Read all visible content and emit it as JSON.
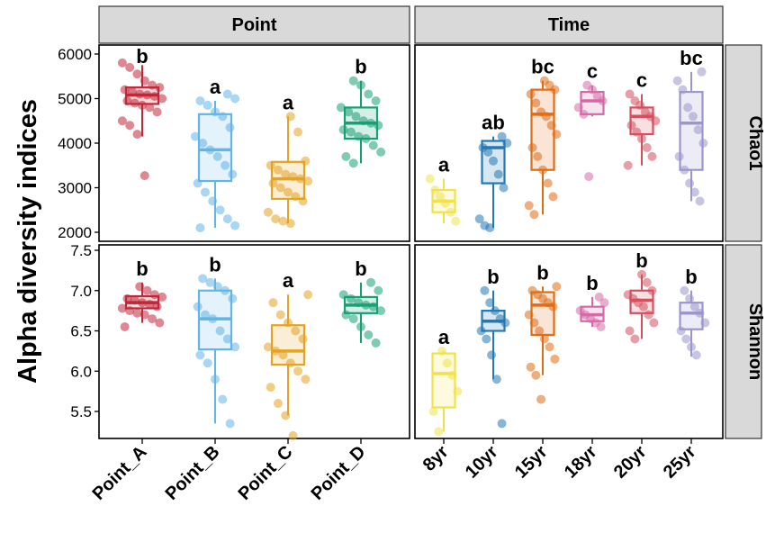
{
  "chart_data": {
    "type": "boxplot",
    "ylabel": "Alpha diversity indices",
    "facet_columns": [
      "Point",
      "Time"
    ],
    "facet_rows": [
      "Chao1",
      "Shannon"
    ],
    "groups": {
      "Point": {
        "categories": [
          "Point_A",
          "Point_B",
          "Point_C",
          "Point_D"
        ],
        "colors": [
          "#c0283a",
          "#63b5e8",
          "#e5a321",
          "#16a074"
        ]
      },
      "Time": {
        "categories": [
          "8yr",
          "10yr",
          "15yr",
          "18yr",
          "20yr",
          "25yr"
        ],
        "colors": [
          "#f2e24a",
          "#2478b4",
          "#e06c14",
          "#d66aa8",
          "#d4505f",
          "#9b96cc"
        ]
      }
    },
    "rows": {
      "Chao1": {
        "ylim": [
          2000,
          6000
        ],
        "yticks": [
          2000,
          3000,
          4000,
          5000,
          6000
        ],
        "panels": {
          "Point": [
            {
              "q1": 4880,
              "median": 5080,
              "q3": 5250,
              "whisker_low": 4150,
              "whisker_high": 5750,
              "letter": "b",
              "points": [
                5800,
                5700,
                5550,
                5400,
                5300,
                5250,
                5200,
                5150,
                5100,
                5080,
                5050,
                5000,
                4950,
                4900,
                4850,
                4800,
                4700,
                4500,
                4400,
                4200,
                3270
              ]
            },
            {
              "q1": 3150,
              "median": 3850,
              "q3": 4650,
              "whisker_low": 2100,
              "whisker_high": 4950,
              "letter": "a",
              "points": [
                5100,
                5000,
                4950,
                4850,
                4700,
                4600,
                4350,
                4150,
                4000,
                3850,
                3700,
                3500,
                3300,
                3100,
                2900,
                2700,
                2500,
                2300,
                2150,
                2100
              ]
            },
            {
              "q1": 2750,
              "median": 3200,
              "q3": 3580,
              "whisker_low": 2200,
              "whisker_high": 4600,
              "letter": "a",
              "points": [
                4600,
                4250,
                3600,
                3500,
                3400,
                3300,
                3250,
                3200,
                3150,
                3100,
                3000,
                2900,
                2800,
                2700,
                2450,
                2300,
                2250,
                2200
              ]
            },
            {
              "q1": 4100,
              "median": 4450,
              "q3": 4800,
              "whisker_low": 3550,
              "whisker_high": 5400,
              "letter": "b",
              "points": [
                5400,
                5300,
                5100,
                4950,
                4800,
                4700,
                4600,
                4500,
                4450,
                4400,
                4300,
                4250,
                4150,
                4100,
                3950,
                3800,
                3700,
                3550
              ]
            }
          ],
          "Time": [
            {
              "q1": 2450,
              "median": 2700,
              "q3": 2950,
              "whisker_low": 2200,
              "whisker_high": 3200,
              "letter": "a",
              "points": [
                3200,
                2950,
                2800,
                2650,
                2450,
                2250
              ]
            },
            {
              "q1": 3100,
              "median": 3900,
              "q3": 4050,
              "whisker_low": 2100,
              "whisker_high": 4150,
              "letter": "ab",
              "points": [
                4150,
                4000,
                3900,
                3800,
                3600,
                3300,
                3000,
                2300,
                2150,
                2100
              ]
            },
            {
              "q1": 3400,
              "median": 4650,
              "q3": 5200,
              "whisker_low": 2400,
              "whisker_high": 5400,
              "letter": "bc",
              "points": [
                5400,
                5300,
                5200,
                5100,
                4900,
                4700,
                4600,
                4400,
                4200,
                3900,
                3700,
                3400,
                3100,
                2800,
                2600,
                2400
              ]
            },
            {
              "q1": 4650,
              "median": 4950,
              "q3": 5150,
              "whisker_low": 4600,
              "whisker_high": 5300,
              "letter": "c",
              "points": [
                5300,
                5200,
                5050,
                4950,
                4800,
                4650,
                3250
              ]
            },
            {
              "q1": 4200,
              "median": 4600,
              "q3": 4800,
              "whisker_low": 3500,
              "whisker_high": 5100,
              "letter": "c",
              "points": [
                5100,
                4950,
                4850,
                4700,
                4600,
                4500,
                4400,
                4250,
                4100,
                3900,
                3700,
                3500
              ]
            },
            {
              "q1": 3400,
              "median": 4450,
              "q3": 5150,
              "whisker_low": 2700,
              "whisker_high": 5600,
              "letter": "bc",
              "points": [
                5600,
                5400,
                5200,
                4800,
                4600,
                4300,
                4000,
                3700,
                3400,
                3100,
                2900,
                2700
              ]
            }
          ]
        }
      },
      "Shannon": {
        "ylim": [
          5.2,
          7.5
        ],
        "yticks": [
          5.5,
          6.0,
          6.5,
          7.0,
          7.5
        ],
        "panels": {
          "Point": [
            {
              "q1": 6.78,
              "median": 6.85,
              "q3": 6.93,
              "whisker_low": 6.6,
              "whisker_high": 7.1,
              "letter": "b",
              "points": [
                7.05,
                7.0,
                6.95,
                6.92,
                6.9,
                6.88,
                6.85,
                6.83,
                6.8,
                6.78,
                6.75,
                6.72,
                6.7,
                6.65,
                6.6,
                6.55
              ]
            },
            {
              "q1": 6.27,
              "median": 6.65,
              "q3": 7.0,
              "whisker_low": 5.35,
              "whisker_high": 7.15,
              "letter": "b",
              "points": [
                7.15,
                7.1,
                7.05,
                7.0,
                6.9,
                6.8,
                6.7,
                6.65,
                6.5,
                6.4,
                6.3,
                6.2,
                6.1,
                5.9,
                5.65,
                5.35
              ]
            },
            {
              "q1": 6.08,
              "median": 6.25,
              "q3": 6.57,
              "whisker_low": 5.45,
              "whisker_high": 6.95,
              "letter": "a",
              "points": [
                6.95,
                6.85,
                6.7,
                6.6,
                6.5,
                6.4,
                6.3,
                6.25,
                6.2,
                6.1,
                6.0,
                5.9,
                5.8,
                5.6,
                5.45,
                5.2
              ]
            },
            {
              "q1": 6.72,
              "median": 6.82,
              "q3": 6.92,
              "whisker_low": 6.35,
              "whisker_high": 7.1,
              "letter": "b",
              "points": [
                7.1,
                7.0,
                6.95,
                6.9,
                6.85,
                6.82,
                6.8,
                6.75,
                6.7,
                6.65,
                6.55,
                6.45,
                6.35
              ]
            }
          ],
          "Time": [
            {
              "q1": 5.55,
              "median": 5.97,
              "q3": 6.22,
              "whisker_low": 5.25,
              "whisker_high": 6.25,
              "letter": "a",
              "points": [
                6.25,
                6.1,
                5.95,
                5.75,
                5.5,
                5.25
              ]
            },
            {
              "q1": 6.5,
              "median": 6.62,
              "q3": 6.75,
              "whisker_low": 5.9,
              "whisker_high": 7.0,
              "letter": "b",
              "points": [
                7.0,
                6.85,
                6.75,
                6.65,
                6.6,
                6.5,
                6.4,
                6.2,
                5.9,
                5.35
              ]
            },
            {
              "q1": 6.45,
              "median": 6.82,
              "q3": 6.98,
              "whisker_low": 5.95,
              "whisker_high": 7.05,
              "letter": "b",
              "points": [
                7.05,
                7.0,
                6.95,
                6.9,
                6.85,
                6.8,
                6.7,
                6.6,
                6.5,
                6.4,
                6.3,
                6.15,
                6.05,
                5.95,
                5.65
              ]
            },
            {
              "q1": 6.62,
              "median": 6.7,
              "q3": 6.8,
              "whisker_low": 6.55,
              "whisker_high": 6.92,
              "letter": "b",
              "points": [
                6.92,
                6.85,
                6.75,
                6.7,
                6.65,
                6.6,
                6.55
              ]
            },
            {
              "q1": 6.72,
              "median": 6.88,
              "q3": 7.0,
              "whisker_low": 6.4,
              "whisker_high": 7.2,
              "letter": "b",
              "points": [
                7.2,
                7.1,
                7.0,
                6.95,
                6.9,
                6.85,
                6.8,
                6.7,
                6.6,
                6.5,
                6.4
              ]
            },
            {
              "q1": 6.52,
              "median": 6.72,
              "q3": 6.85,
              "whisker_low": 6.18,
              "whisker_high": 7.0,
              "letter": "b",
              "points": [
                7.0,
                6.9,
                6.8,
                6.72,
                6.6,
                6.5,
                6.4,
                6.3,
                6.2
              ]
            }
          ]
        }
      }
    }
  }
}
